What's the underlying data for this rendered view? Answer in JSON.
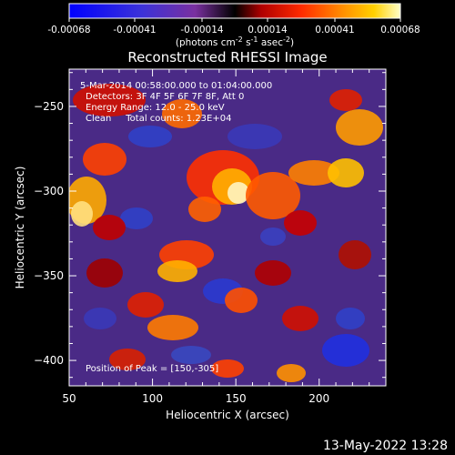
{
  "colorbar": {
    "tick_labels": [
      "-0.00068",
      "-0.00041",
      "-0.00014",
      "0.00014",
      "0.00041",
      "0.00068"
    ],
    "range": [
      -0.00068,
      0.00068
    ],
    "units_main": "(photons cm",
    "units_sup1": "-2",
    "units_mid1": " s",
    "units_sup2": "-1",
    "units_mid2": " asec",
    "units_sup3": "-2",
    "units_end": ")"
  },
  "chart_data": {
    "type": "heatmap",
    "title": "Reconstructed RHESSI Image",
    "xlabel": "Heliocentric X (arcsec)",
    "ylabel": "Heliocentric Y (arcsec)",
    "xlim": [
      50,
      240
    ],
    "ylim": [
      -415,
      -228
    ],
    "x_ticks": [
      50,
      100,
      150,
      200
    ],
    "y_ticks": [
      -250,
      -300,
      -350,
      -400
    ],
    "annotations": [
      "5-Mar-2014 00:58:00.000 to 01:04:00.000",
      "Detectors: 3F 4F 5F 6F 7F 8F, Att 0",
      "Energy Range: 12.0 - 25.0 keV",
      "Clean     Total counts: 1.23E+04"
    ],
    "peak_label": "Position of Peak = [150,-305]",
    "peak": [
      150,
      -305
    ]
  },
  "footer": {
    "date": "13-May-2022 13:28"
  }
}
